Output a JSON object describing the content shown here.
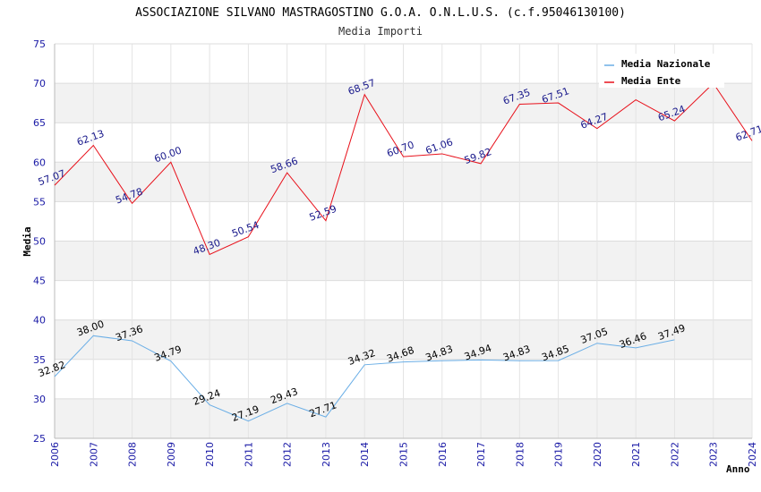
{
  "chart_data": {
    "type": "line",
    "title": "ASSOCIAZIONE SILVANO MASTRAGOSTINO G.O.A. O.N.L.U.S. (c.f.95046130100)",
    "subtitle": "Media Importi",
    "xlabel": "Anno",
    "ylabel": "Media",
    "ylim": [
      25,
      75
    ],
    "yticks": [
      25,
      30,
      35,
      40,
      45,
      50,
      55,
      60,
      65,
      70,
      75
    ],
    "x": [
      2006,
      2007,
      2008,
      2009,
      2010,
      2011,
      2012,
      2013,
      2014,
      2015,
      2016,
      2017,
      2018,
      2019,
      2020,
      2021,
      2022,
      2023,
      2024
    ],
    "legend_position": "top-right",
    "grid": true,
    "series": [
      {
        "name": "Media Nazionale",
        "color": "#6aaee6",
        "label_color": "#000000",
        "values": [
          32.82,
          38.0,
          37.36,
          34.79,
          29.24,
          27.19,
          29.43,
          27.71,
          34.32,
          34.68,
          34.83,
          34.94,
          34.83,
          34.85,
          37.05,
          36.46,
          37.49,
          null,
          null
        ],
        "labels": [
          "32.82",
          "38.00",
          "37.36",
          "34.79",
          "29.24",
          "27.19",
          "29.43",
          "27.71",
          "34.32",
          "34.68",
          "34.83",
          "34.94",
          "34.83",
          "34.85",
          "37.05",
          "36.46",
          "37.49",
          "",
          ""
        ]
      },
      {
        "name": "Media Ente",
        "color": "#e8101a",
        "label_color": "#1a1a8c",
        "values": [
          57.07,
          62.13,
          54.78,
          60.0,
          48.3,
          50.54,
          58.66,
          52.59,
          68.57,
          60.7,
          61.06,
          59.82,
          67.35,
          67.51,
          64.27,
          67.9,
          65.24,
          70.0,
          62.71
        ],
        "labels": [
          "57.07",
          "62.13",
          "54.78",
          "60.00",
          "48.30",
          "50.54",
          "58.66",
          "52.59",
          "68.57",
          "60.70",
          "61.06",
          "59.82",
          "67.35",
          "67.51",
          "64.27",
          "",
          "65.24",
          "",
          "62.71"
        ]
      }
    ]
  }
}
